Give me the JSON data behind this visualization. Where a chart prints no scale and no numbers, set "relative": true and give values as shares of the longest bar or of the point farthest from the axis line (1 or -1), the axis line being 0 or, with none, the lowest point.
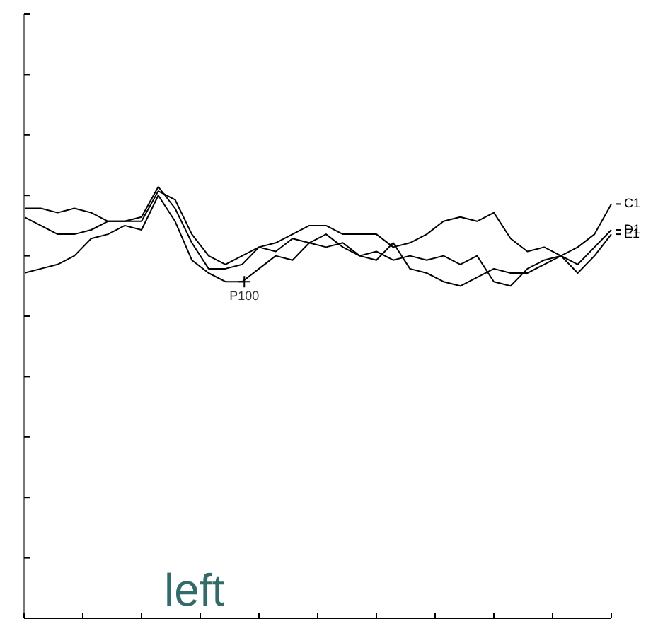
{
  "chart_data": {
    "type": "line",
    "relative": true,
    "title": "left",
    "categories": [
      null,
      null,
      null,
      null,
      null,
      null,
      null,
      null,
      null,
      null,
      null,
      null,
      null,
      null,
      null,
      null,
      null,
      null,
      null,
      null,
      null,
      null,
      null,
      null,
      null,
      null,
      null,
      null,
      null,
      null,
      null,
      null,
      null,
      null,
      null,
      null
    ],
    "series": [
      {
        "name": "C1",
        "color": "#000000",
        "values": [
          0.95,
          0.95,
          0.94,
          0.95,
          0.94,
          0.92,
          0.92,
          0.92,
          0.99,
          0.97,
          0.89,
          0.84,
          0.82,
          0.84,
          0.86,
          0.87,
          0.89,
          0.91,
          0.91,
          0.89,
          0.89,
          0.89,
          0.86,
          0.87,
          0.89,
          0.92,
          0.93,
          0.92,
          0.94,
          0.88,
          0.85,
          0.86,
          0.84,
          0.86,
          0.89,
          0.96
        ]
      },
      {
        "name": "D1",
        "color": "#000000",
        "values": [
          0.93,
          0.91,
          0.89,
          0.89,
          0.9,
          0.92,
          0.92,
          0.93,
          1.0,
          0.95,
          0.87,
          0.81,
          0.81,
          0.82,
          0.86,
          0.85,
          0.88,
          0.87,
          0.86,
          0.87,
          0.84,
          0.83,
          0.87,
          0.81,
          0.8,
          0.78,
          0.77,
          0.79,
          0.81,
          0.8,
          0.8,
          0.82,
          0.84,
          0.82,
          0.86,
          0.9
        ]
      },
      {
        "name": "E1",
        "color": "#000000",
        "values": [
          0.8,
          0.81,
          0.82,
          0.84,
          0.88,
          0.89,
          0.91,
          0.9,
          0.98,
          0.92,
          0.83,
          0.8,
          0.78,
          0.78,
          0.81,
          0.84,
          0.83,
          0.87,
          0.89,
          0.86,
          0.84,
          0.85,
          0.83,
          0.84,
          0.83,
          0.84,
          0.82,
          0.84,
          0.78,
          0.77,
          0.81,
          0.83,
          0.84,
          0.8,
          0.84,
          0.89
        ]
      }
    ],
    "annotations": [
      {
        "text": "P100",
        "y": 0.78
      }
    ],
    "legend": "right",
    "marker": "none",
    "line_style": "solid",
    "tick_labels": false
  }
}
